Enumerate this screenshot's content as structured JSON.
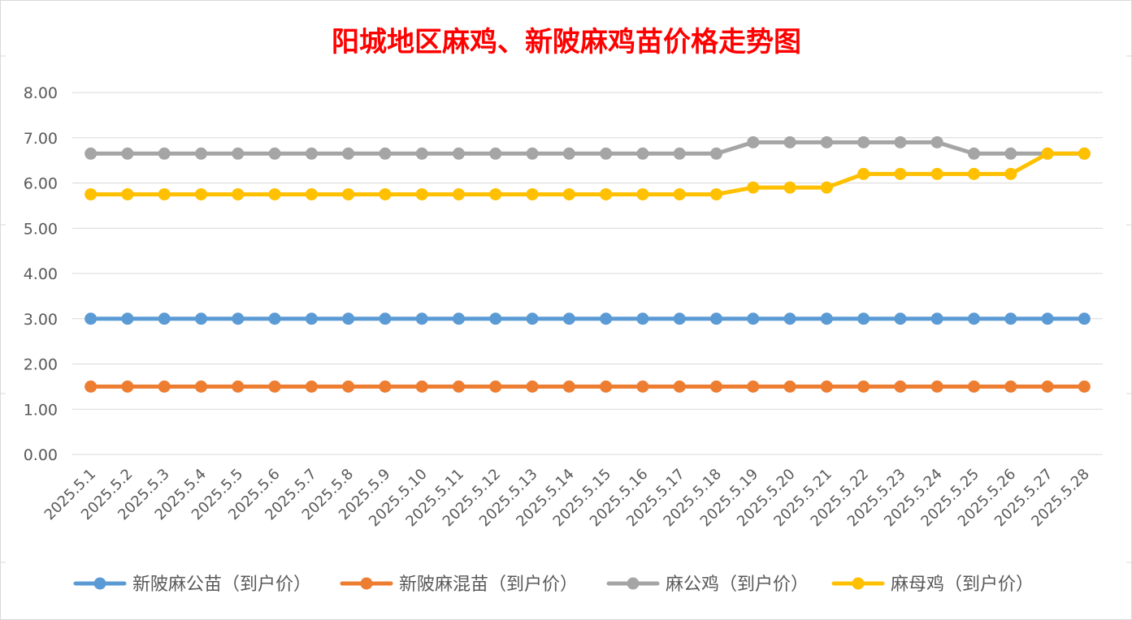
{
  "chart_data": {
    "type": "line",
    "title": "阳城地区麻鸡、新陂麻鸡苗价格走势图",
    "xlabel": "",
    "ylabel": "",
    "ylim": [
      0,
      8
    ],
    "y_ticks": [
      "0.00",
      "1.00",
      "2.00",
      "3.00",
      "4.00",
      "5.00",
      "6.00",
      "7.00",
      "8.00"
    ],
    "grid": true,
    "legend_position": "bottom",
    "categories": [
      "2025.5.1",
      "2025.5.2",
      "2025.5.3",
      "2025.5.4",
      "2025.5.5",
      "2025.5.6",
      "2025.5.7",
      "2025.5.8",
      "2025.5.9",
      "2025.5.10",
      "2025.5.11",
      "2025.5.12",
      "2025.5.13",
      "2025.5.14",
      "2025.5.15",
      "2025.5.16",
      "2025.5.17",
      "2025.5.18",
      "2025.5.19",
      "2025.5.20",
      "2025.5.21",
      "2025.5.22",
      "2025.5.23",
      "2025.5.24",
      "2025.5.25",
      "2025.5.26",
      "2025.5.27",
      "2025.5.28"
    ],
    "series": [
      {
        "name": "新陂麻公苗（到户价）",
        "color": "#5b9bd5",
        "values": [
          3.0,
          3.0,
          3.0,
          3.0,
          3.0,
          3.0,
          3.0,
          3.0,
          3.0,
          3.0,
          3.0,
          3.0,
          3.0,
          3.0,
          3.0,
          3.0,
          3.0,
          3.0,
          3.0,
          3.0,
          3.0,
          3.0,
          3.0,
          3.0,
          3.0,
          3.0,
          3.0,
          3.0
        ]
      },
      {
        "name": "新陂麻混苗（到户价）",
        "color": "#ed7d31",
        "values": [
          1.5,
          1.5,
          1.5,
          1.5,
          1.5,
          1.5,
          1.5,
          1.5,
          1.5,
          1.5,
          1.5,
          1.5,
          1.5,
          1.5,
          1.5,
          1.5,
          1.5,
          1.5,
          1.5,
          1.5,
          1.5,
          1.5,
          1.5,
          1.5,
          1.5,
          1.5,
          1.5,
          1.5
        ]
      },
      {
        "name": "麻公鸡（到户价）",
        "color": "#a5a5a5",
        "values": [
          6.65,
          6.65,
          6.65,
          6.65,
          6.65,
          6.65,
          6.65,
          6.65,
          6.65,
          6.65,
          6.65,
          6.65,
          6.65,
          6.65,
          6.65,
          6.65,
          6.65,
          6.65,
          6.9,
          6.9,
          6.9,
          6.9,
          6.9,
          6.9,
          6.65,
          6.65,
          6.65,
          6.65
        ]
      },
      {
        "name": "麻母鸡（到户价）",
        "color": "#ffc000",
        "values": [
          5.75,
          5.75,
          5.75,
          5.75,
          5.75,
          5.75,
          5.75,
          5.75,
          5.75,
          5.75,
          5.75,
          5.75,
          5.75,
          5.75,
          5.75,
          5.75,
          5.75,
          5.75,
          5.9,
          5.9,
          5.9,
          6.2,
          6.2,
          6.2,
          6.2,
          6.2,
          6.65,
          6.65
        ]
      }
    ]
  }
}
